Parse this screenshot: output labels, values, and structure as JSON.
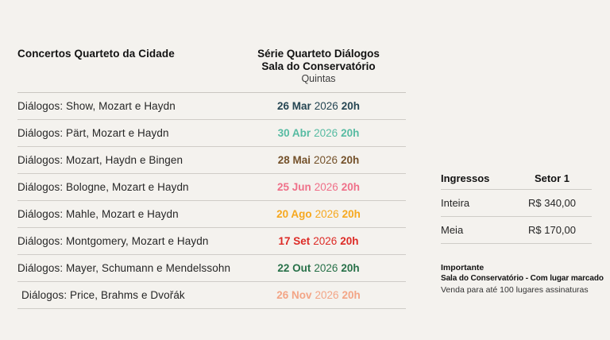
{
  "concerts": {
    "header": {
      "left_title": "Concertos Quarteto da Cidade",
      "right_title_line1": "Série Quarteto Diálogos",
      "right_title_line2": "Sala do Conservatório",
      "right_subtitle": "Quintas"
    },
    "rows": [
      {
        "title": "Diálogos: Show, Mozart e Haydn",
        "date": "26 Mar",
        "year": "2026",
        "time": "20h",
        "color": "#264653"
      },
      {
        "title": "Diálogos: Pärt, Mozart e Haydn",
        "date": "30 Abr",
        "year": "2026",
        "time": "20h",
        "color": "#57bba2"
      },
      {
        "title": "Diálogos: Mozart, Haydn e Bingen",
        "date": "28 Mai",
        "year": "2026",
        "time": "20h",
        "color": "#74512a"
      },
      {
        "title": "Diálogos: Bologne, Mozart e Haydn",
        "date": "25 Jun",
        "year": "2026",
        "time": "20h",
        "color": "#ef7089"
      },
      {
        "title": "Diálogos: Mahle, Mozart e Haydn",
        "date": "20 Ago",
        "year": "2026",
        "time": "20h",
        "color": "#f6a81f"
      },
      {
        "title": "Diálogos: Montgomery, Mozart e Haydn",
        "date": "17 Set",
        "year": "2026",
        "time": "20h",
        "color": "#dd2b26"
      },
      {
        "title": "Diálogos: Mayer, Schumann e Mendelssohn",
        "date": "22 Out",
        "year": "2026",
        "time": "20h",
        "color": "#287149"
      },
      {
        "title": "Diálogos: Price, Brahms e Dvořák",
        "date": "26 Nov",
        "year": "2026",
        "time": "20h",
        "color": "#f3a586"
      }
    ]
  },
  "tickets": {
    "header": {
      "col_label": "Ingressos",
      "col_value": "Setor 1"
    },
    "rows": [
      {
        "label": "Inteira",
        "price": "R$ 340,00"
      },
      {
        "label": "Meia",
        "price": "R$ 170,00"
      }
    ]
  },
  "notes": {
    "title": "Importante",
    "line1": "Sala do Conservatório - Com lugar marcado",
    "line2": "Venda para até 100 lugares assinaturas"
  }
}
